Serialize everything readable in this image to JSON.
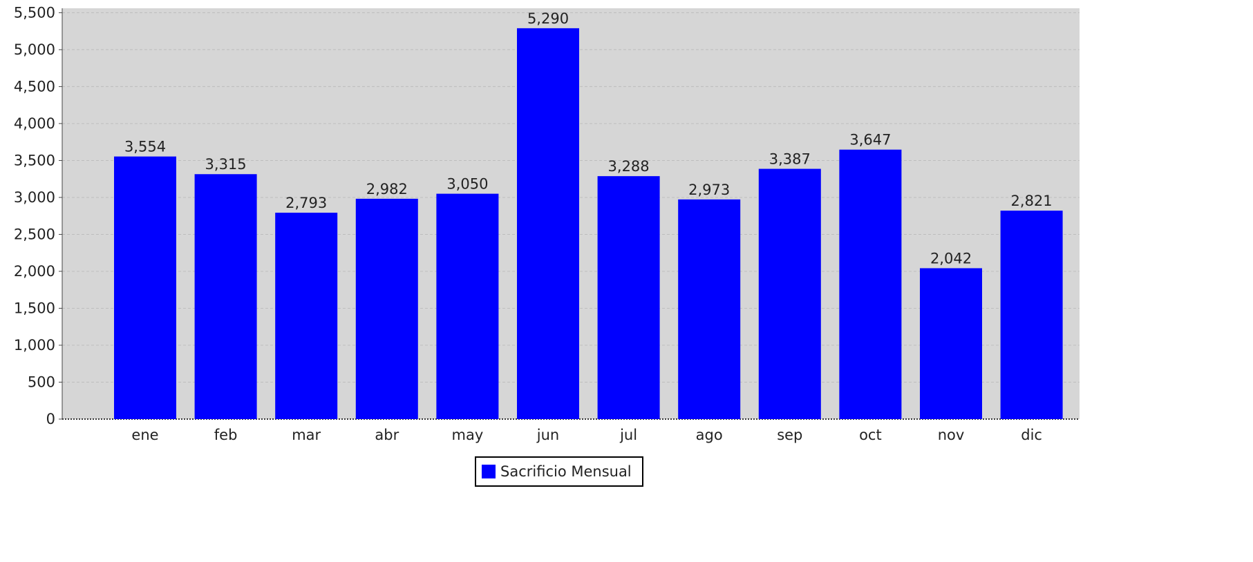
{
  "chart_data": {
    "type": "bar",
    "categories": [
      "ene",
      "feb",
      "mar",
      "abr",
      "may",
      "jun",
      "jul",
      "ago",
      "sep",
      "oct",
      "nov",
      "dic"
    ],
    "series": [
      {
        "name": "Sacrificio Mensual",
        "values": [
          3554,
          3315,
          2793,
          2982,
          3050,
          5290,
          3288,
          2973,
          3387,
          3647,
          2042,
          2821
        ],
        "color": "#0000ff"
      }
    ],
    "data_labels": [
      "3,554",
      "3,315",
      "2,793",
      "2,982",
      "3,050",
      "5,290",
      "3,288",
      "2,973",
      "3,387",
      "3,647",
      "2,042",
      "2,821"
    ],
    "y_ticks": [
      0,
      500,
      1000,
      1500,
      2000,
      2500,
      3000,
      3500,
      4000,
      4500,
      5000,
      5500
    ],
    "y_tick_labels": [
      "0",
      "500",
      "1,000",
      "1,500",
      "2,000",
      "2,500",
      "3,000",
      "3,500",
      "4,000",
      "4,500",
      "5,000",
      "5,500"
    ],
    "ylim": [
      0,
      5560
    ],
    "title": "",
    "xlabel": "",
    "ylabel": "",
    "grid": true,
    "legend_position": "bottom",
    "colors": {
      "plot_background": "#d6d6d6",
      "gridline": "#bdbdbd",
      "bar": "#0000ff",
      "axis": "#444444",
      "text": "#222222"
    }
  }
}
